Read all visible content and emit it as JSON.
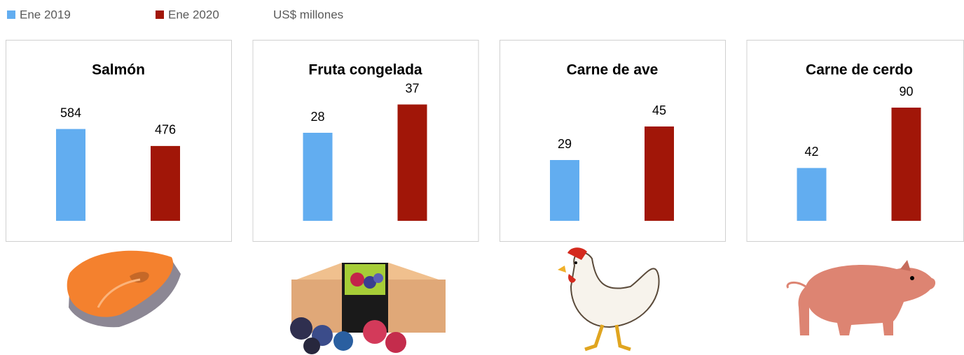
{
  "series": [
    {
      "name": "Ene 2019",
      "color": "#62adf0"
    },
    {
      "name": "Ene 2020",
      "color": "#a11608"
    }
  ],
  "unit": "US$ millones",
  "chart_data": [
    {
      "type": "bar",
      "title": "Salmón",
      "values": [
        584,
        476
      ],
      "ylim": [
        0,
        800
      ]
    },
    {
      "type": "bar",
      "title": "Fruta congelada",
      "values": [
        28,
        37
      ],
      "ylim": [
        0,
        40
      ]
    },
    {
      "type": "bar",
      "title": "Carne de ave",
      "values": [
        29,
        45
      ],
      "ylim": [
        0,
        60
      ]
    },
    {
      "type": "bar",
      "title": "Carne de cerdo",
      "values": [
        42,
        90
      ],
      "ylim": [
        0,
        100
      ]
    }
  ]
}
